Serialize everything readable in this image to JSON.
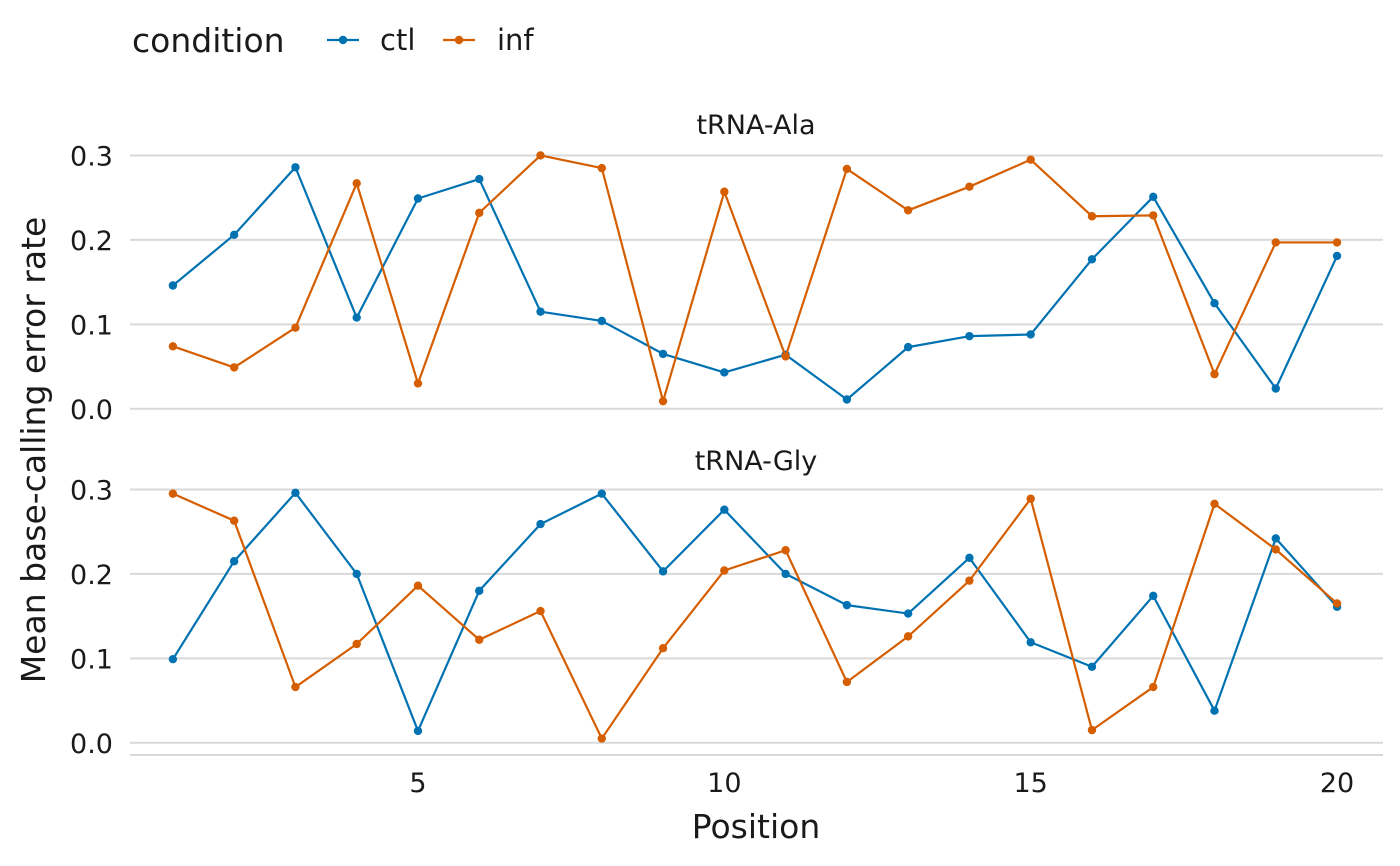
{
  "chart_data": {
    "type": "line",
    "xlabel": "Position",
    "ylabel": "Mean base-calling error rate",
    "xlim": [
      0.3,
      20.75
    ],
    "xticks": [
      5,
      10,
      15,
      20
    ],
    "ylim": [
      -0.005,
      0.31
    ],
    "yticks": [
      "0.0",
      "0.1",
      "0.2",
      "0.3"
    ],
    "ytick_values": [
      0,
      0.1,
      0.2,
      0.3
    ],
    "legend": {
      "title": "condition",
      "position": "top-left",
      "entries": [
        {
          "name": "ctl",
          "color": "#0072B2"
        },
        {
          "name": "inf",
          "color": "#D55E00"
        }
      ]
    },
    "x": [
      1,
      2,
      3,
      4,
      5,
      6,
      7,
      8,
      9,
      10,
      11,
      12,
      13,
      14,
      15,
      16,
      17,
      18,
      19,
      20
    ],
    "facets": [
      {
        "title": "tRNA-Ala",
        "series": [
          {
            "name": "ctl",
            "color": "#0072B2",
            "values": [
              0.146,
              0.206,
              0.286,
              0.108,
              0.249,
              0.272,
              0.115,
              0.104,
              0.065,
              0.043,
              0.064,
              0.011,
              0.073,
              0.086,
              0.088,
              0.177,
              0.251,
              0.125,
              0.024,
              0.181
            ]
          },
          {
            "name": "inf",
            "color": "#D55E00",
            "values": [
              0.074,
              0.049,
              0.096,
              0.267,
              0.03,
              0.232,
              0.3,
              0.285,
              0.009,
              0.257,
              0.062,
              0.284,
              0.235,
              0.263,
              0.295,
              0.228,
              0.229,
              0.041,
              0.197,
              0.197
            ]
          }
        ]
      },
      {
        "title": "tRNA-Gly",
        "series": [
          {
            "name": "ctl",
            "color": "#0072B2",
            "values": [
              0.099,
              0.215,
              0.296,
              0.2,
              0.014,
              0.18,
              0.259,
              0.295,
              0.203,
              0.276,
              0.2,
              0.163,
              0.153,
              0.219,
              0.119,
              0.09,
              0.174,
              0.038,
              0.242,
              0.161
            ]
          },
          {
            "name": "inf",
            "color": "#D55E00",
            "values": [
              0.295,
              0.263,
              0.066,
              0.117,
              0.186,
              0.122,
              0.156,
              0.005,
              0.112,
              0.204,
              0.228,
              0.072,
              0.126,
              0.192,
              0.289,
              0.015,
              0.066,
              0.283,
              0.229,
              0.165
            ]
          }
        ]
      }
    ]
  }
}
